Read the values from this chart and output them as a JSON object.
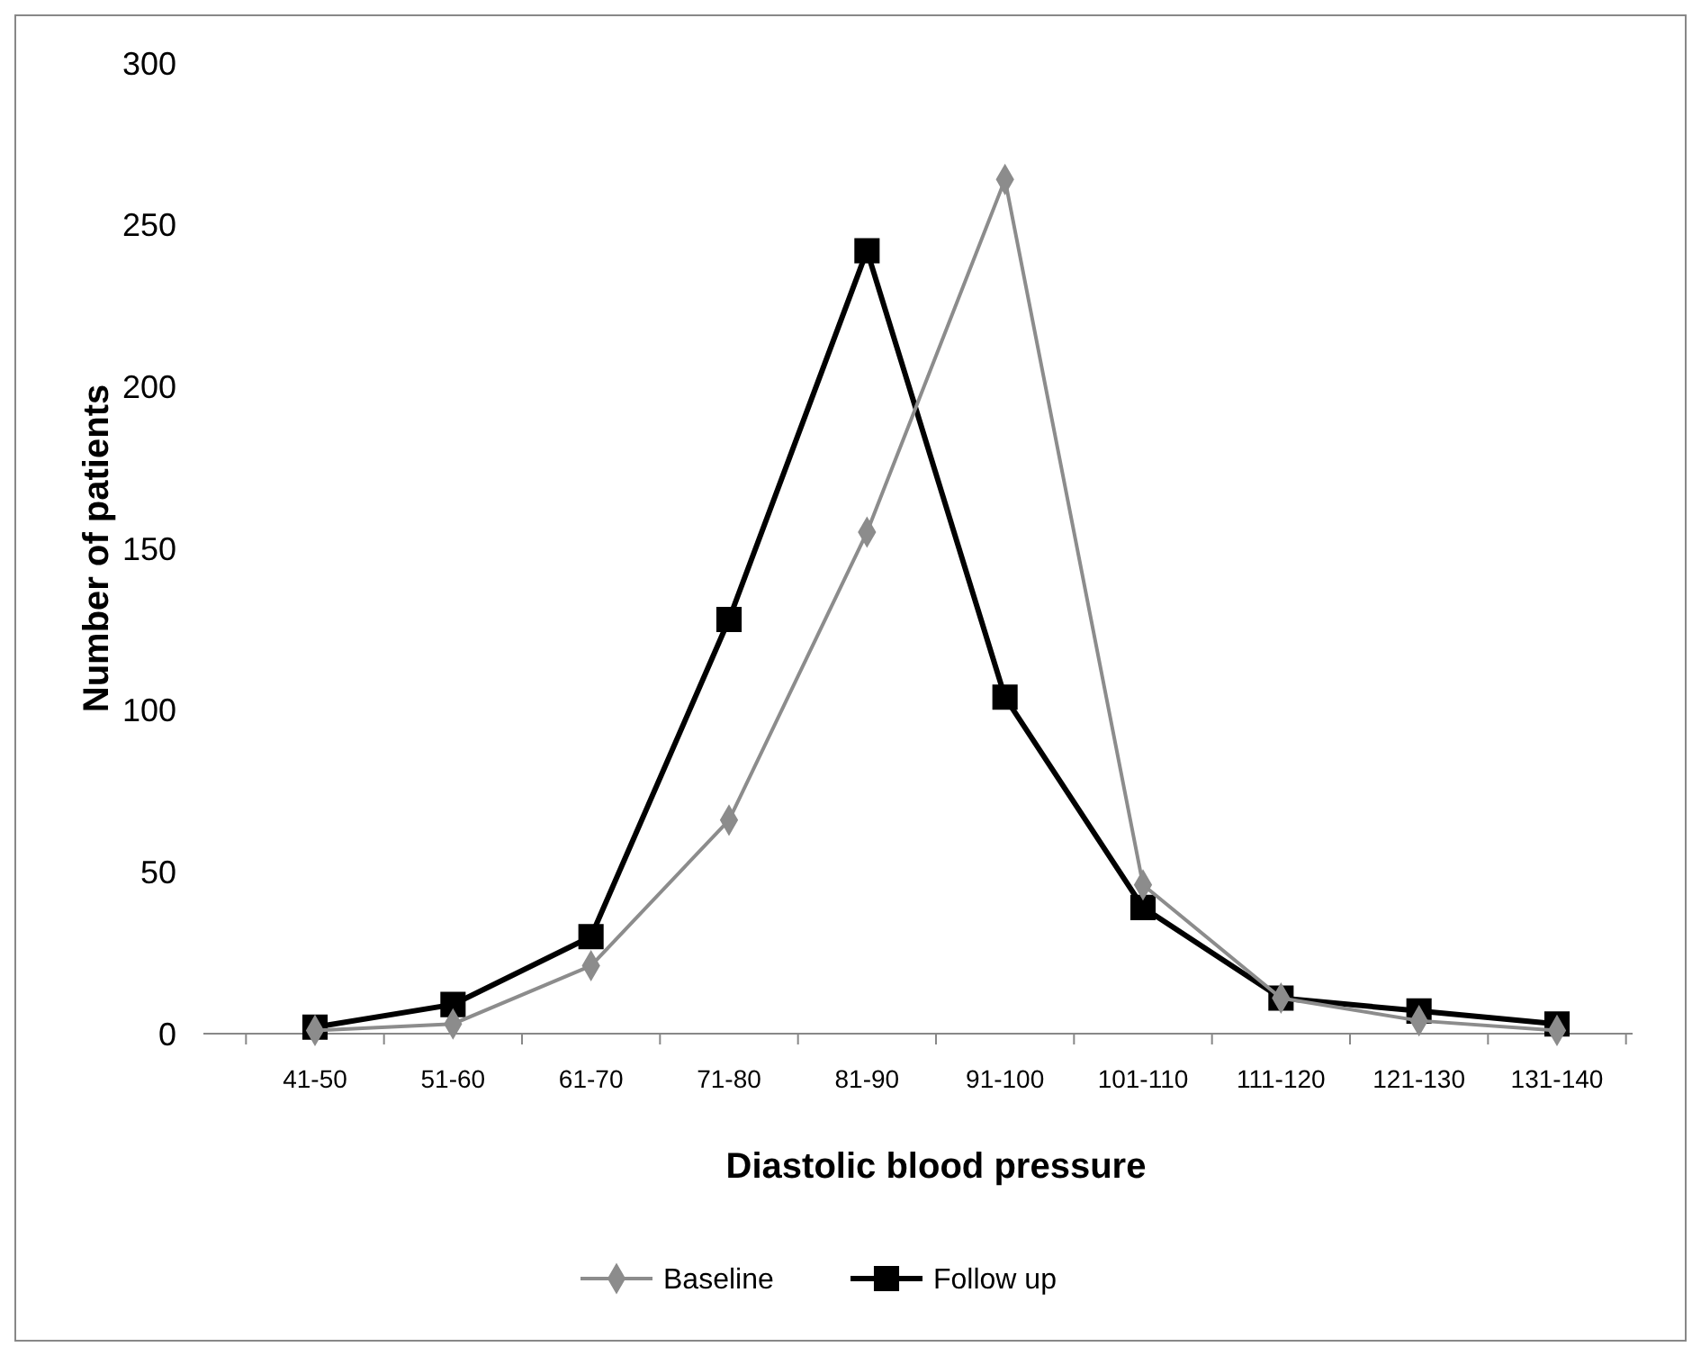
{
  "chart_data": {
    "type": "line",
    "xlabel": "Diastolic  blood pressure",
    "ylabel": "Number of patients",
    "categories": [
      "41-50",
      "51-60",
      "61-70",
      "71-80",
      "81-90",
      "91-100",
      "101-110",
      "111-120",
      "121-130",
      "131-140"
    ],
    "series": [
      {
        "name": "Baseline",
        "color": "#8c8c8c",
        "marker": "diamond",
        "values": [
          1,
          3,
          21,
          66,
          155,
          264,
          46,
          11,
          4,
          1
        ]
      },
      {
        "name": "Follow up",
        "color": "#000000",
        "marker": "square",
        "values": [
          2,
          9,
          30,
          128,
          242,
          104,
          39,
          11,
          7,
          3
        ]
      }
    ],
    "ylim": [
      0,
      300
    ],
    "yticks": [
      0,
      50,
      100,
      150,
      200,
      250,
      300
    ],
    "grid": false,
    "legend": "bottom"
  }
}
